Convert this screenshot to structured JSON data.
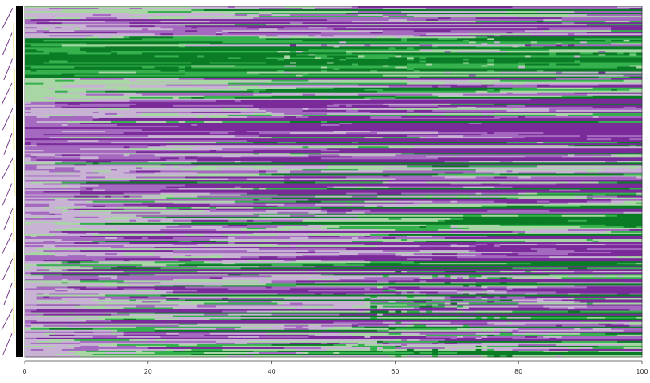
{
  "chart_data": {
    "type": "heatmap",
    "title": "",
    "xlabel": "",
    "ylabel": "",
    "x": {
      "range": [
        0,
        100
      ],
      "columns": 100
    },
    "rows": 220,
    "x_ticks": [
      {
        "value": 0,
        "label": "0"
      },
      {
        "value": 20,
        "label": "20"
      },
      {
        "value": 40,
        "label": "40"
      },
      {
        "value": 60,
        "label": "60"
      },
      {
        "value": 80,
        "label": "80"
      },
      {
        "value": 100,
        "label": "100"
      }
    ],
    "color_scale": {
      "levels": [
        1,
        2,
        3,
        4,
        5,
        6
      ],
      "colors": [
        "#7b2a9a",
        "#a569c0",
        "#c8b3d4",
        "#a8d6a4",
        "#35b14d",
        "#0a7c26"
      ]
    },
    "dominant_bands": [
      {
        "rows": [
          20,
          45
        ],
        "pattern": "strong green",
        "level": 6
      },
      {
        "rows": [
          45,
          60
        ],
        "pattern": "green/grey mix",
        "level": 4
      },
      {
        "rows": [
          60,
          120
        ],
        "pattern": "purple/grey mix",
        "level": 2
      },
      {
        "rows": [
          120,
          220
        ],
        "pattern": "purple/green stripes",
        "level": 3
      }
    ],
    "row_annotation": {
      "colors": [
        "#000000",
        "#6b2b7f",
        "#f1e7a5"
      ]
    }
  }
}
